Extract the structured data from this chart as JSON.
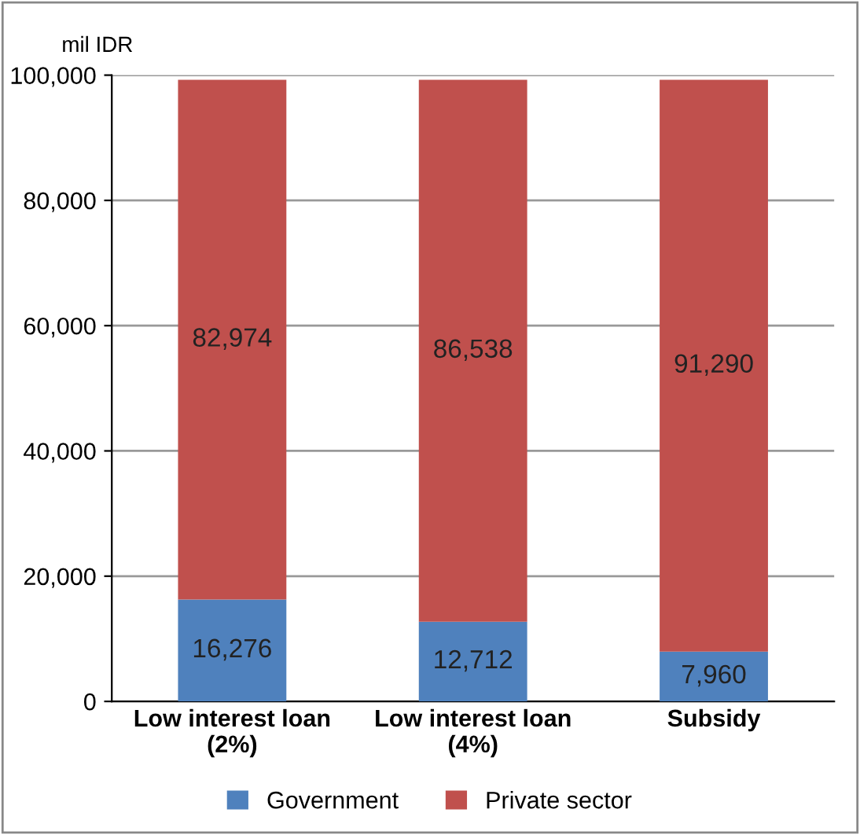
{
  "chart_data": {
    "type": "bar",
    "stacked": true,
    "ylabel": "mil IDR",
    "categories": [
      "Low interest loan\n(2%)",
      "Low interest loan\n(4%)",
      "Subsidy"
    ],
    "series": [
      {
        "name": "Government",
        "color": "#4f81bd",
        "values": [
          16276,
          12712,
          7960
        ],
        "value_labels": [
          "16,276",
          "12,712",
          "7,960"
        ]
      },
      {
        "name": "Private sector",
        "color": "#c0504d",
        "values": [
          82974,
          86538,
          91290
        ],
        "value_labels": [
          "82,974",
          "86,538",
          "91,290"
        ]
      }
    ],
    "ylim": [
      0,
      100000
    ],
    "yticks": [
      {
        "value": 0,
        "label": "0"
      },
      {
        "value": 20000,
        "label": "20,000"
      },
      {
        "value": 40000,
        "label": "40,000"
      },
      {
        "value": 60000,
        "label": "60,000"
      },
      {
        "value": 80000,
        "label": "80,000"
      },
      {
        "value": 100000,
        "label": "100,000"
      }
    ],
    "grid": "y",
    "legend": "bottom"
  }
}
